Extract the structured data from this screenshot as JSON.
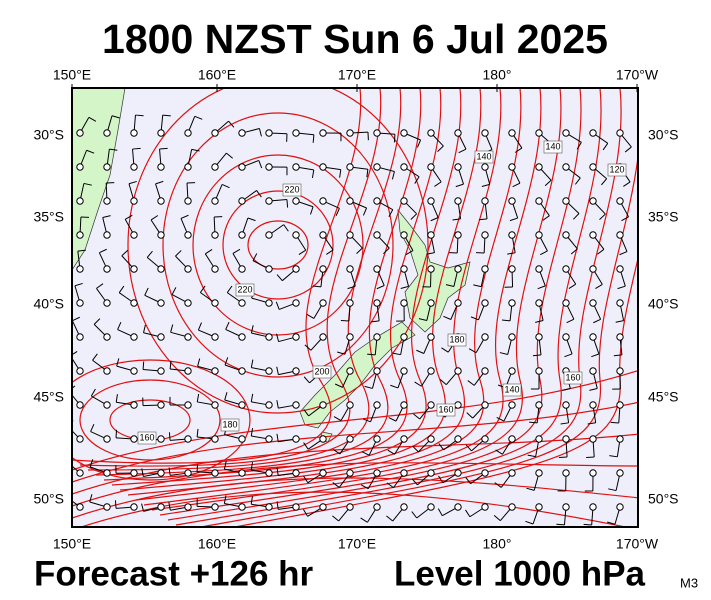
{
  "title": "1800 NZST Sun 6 Jul 2025",
  "axes": {
    "lon_labels": [
      "150°E",
      "160°E",
      "170°E",
      "180°",
      "170°W"
    ],
    "lat_labels": [
      "30°S",
      "35°S",
      "40°S",
      "45°S",
      "50°S"
    ]
  },
  "contour_labels": [
    220,
    220,
    200,
    180,
    160,
    180,
    160,
    140,
    140,
    140,
    120,
    160
  ],
  "footer": {
    "forecast": "Forecast +126 hr",
    "level": "Level 1000 hPa",
    "model": "M3"
  }
}
